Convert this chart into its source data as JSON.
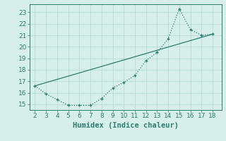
{
  "x": [
    2,
    3,
    4,
    5,
    6,
    7,
    8,
    9,
    10,
    11,
    12,
    13,
    14,
    15,
    16,
    17,
    18
  ],
  "y_curve": [
    16.6,
    15.9,
    15.4,
    14.9,
    14.9,
    14.9,
    15.5,
    16.4,
    16.9,
    17.5,
    18.8,
    19.5,
    20.7,
    23.3,
    21.5,
    21.0,
    21.1
  ],
  "line_x": [
    2,
    18
  ],
  "line_y": [
    16.6,
    21.1
  ],
  "line_color": "#2e7d6e",
  "bg_color": "#d6efea",
  "grid_color": "#b8dbd5",
  "xlabel": "Humidex (Indice chaleur)",
  "xlim": [
    1.5,
    18.8
  ],
  "ylim": [
    14.5,
    23.7
  ],
  "xticks": [
    2,
    3,
    4,
    5,
    6,
    7,
    8,
    9,
    10,
    11,
    12,
    13,
    14,
    15,
    16,
    17,
    18
  ],
  "yticks": [
    15,
    16,
    17,
    18,
    19,
    20,
    21,
    22,
    23
  ]
}
